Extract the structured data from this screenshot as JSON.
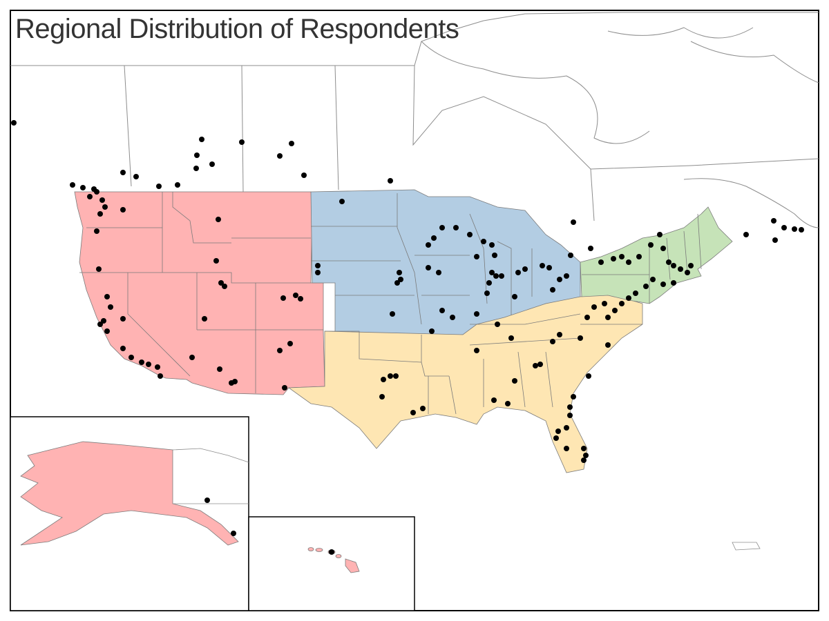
{
  "title": "Regional Distribution of Respondents",
  "colors": {
    "west": "#ffb3b3",
    "midwest": "#b3cde3",
    "south": "#fee6b3",
    "northeast": "#c6e3b8",
    "outline": "#7a7a7a",
    "dot": "#000000"
  },
  "regions": [
    "West",
    "Midwest",
    "South",
    "Northeast"
  ]
}
